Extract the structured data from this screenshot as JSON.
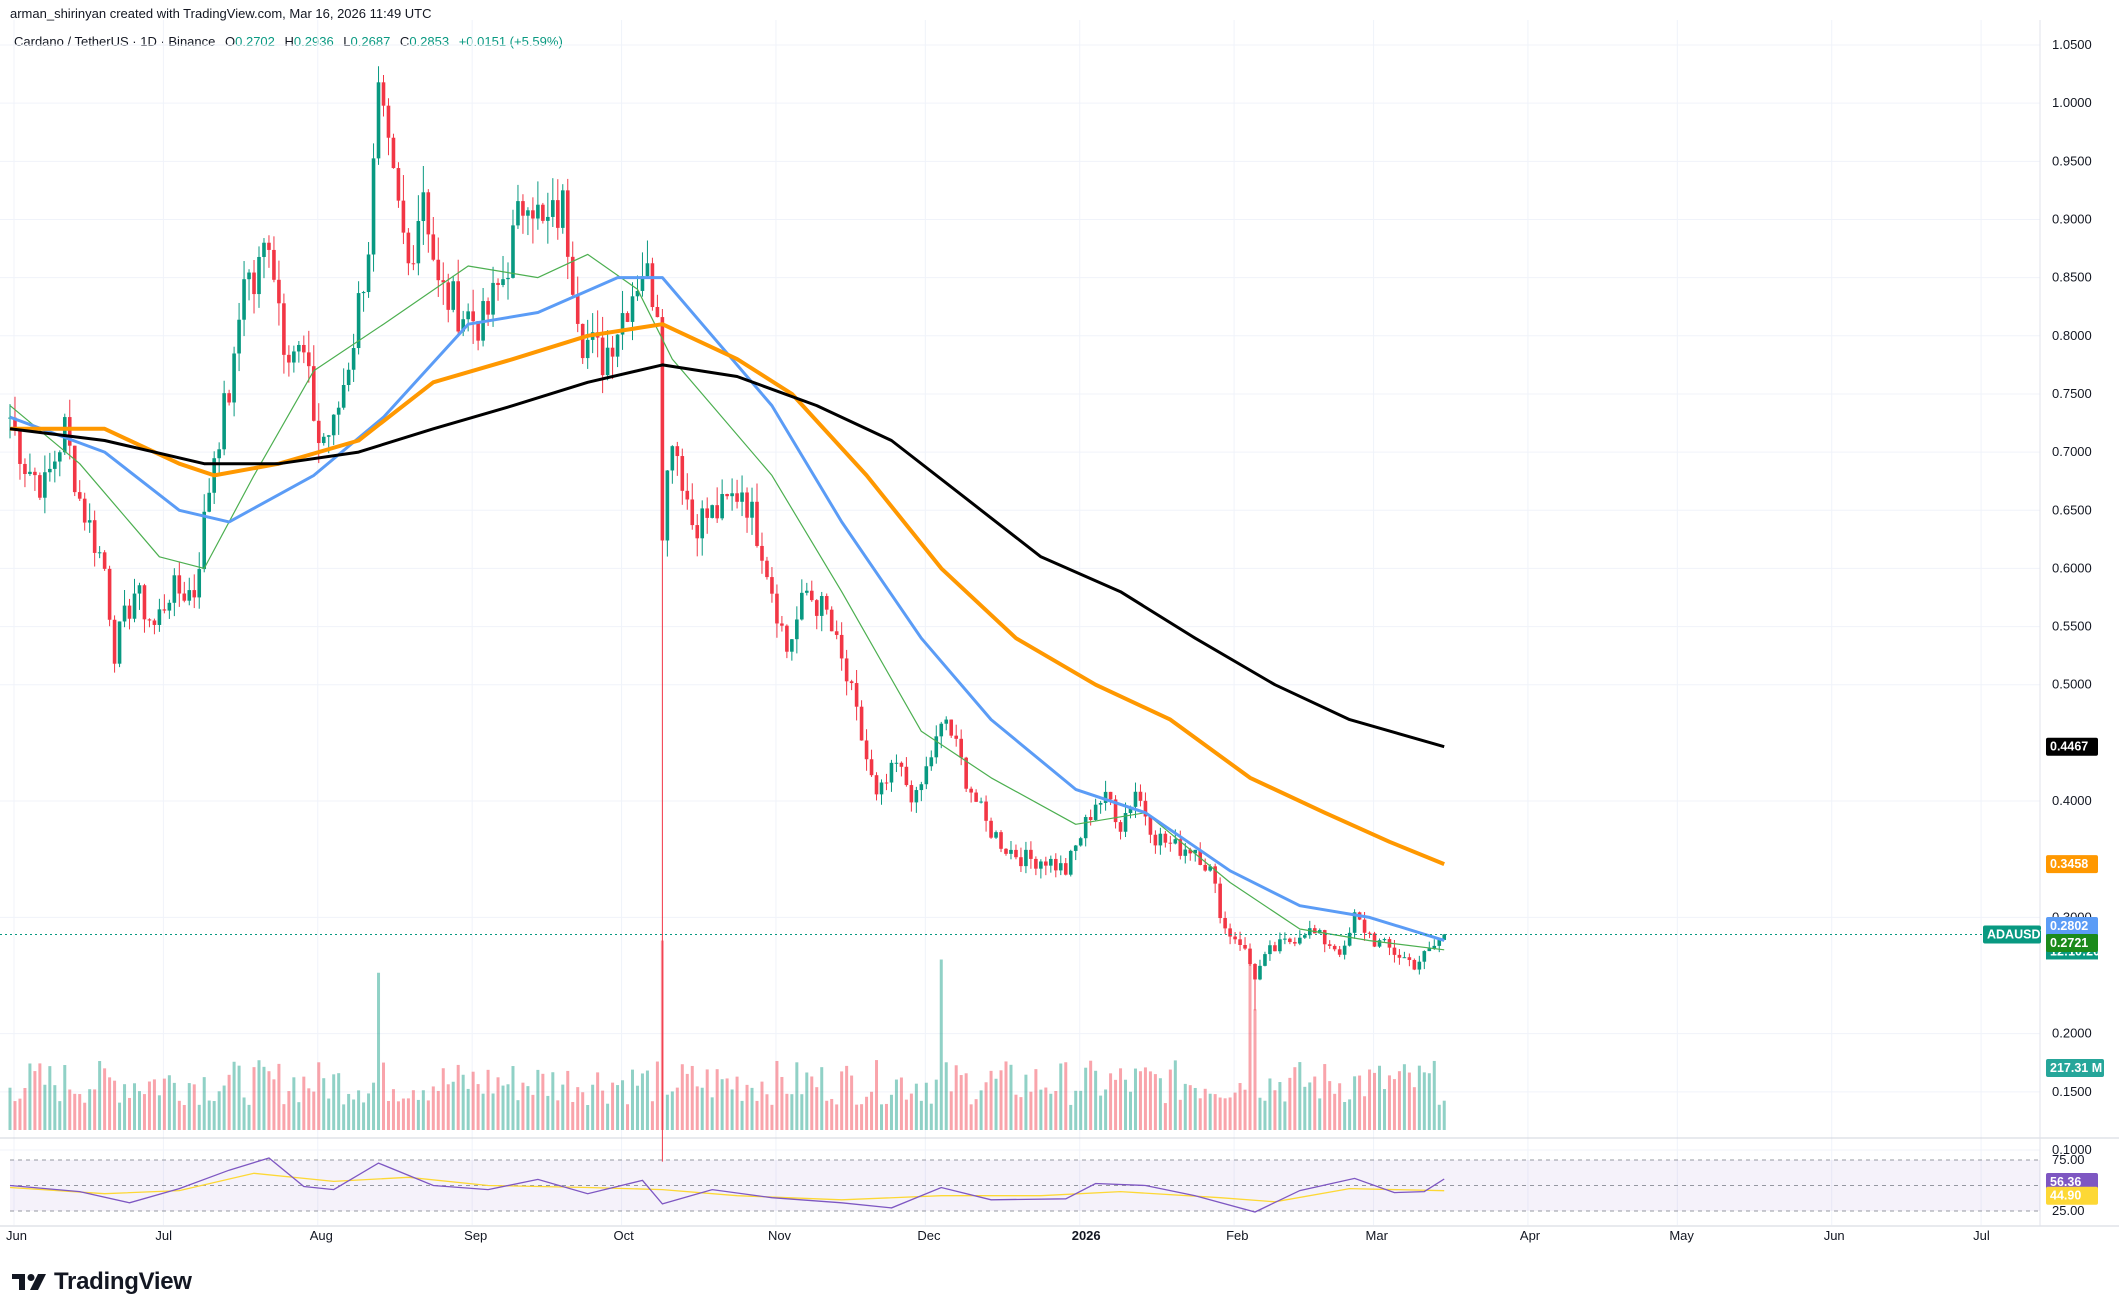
{
  "header": {
    "author_line": "arman_shirinyan created with TradingView.com, Mar 16, 2026 11:49 UTC",
    "symbol": "Cardano / TetherUS · 1D · Binance",
    "ohlc": [
      {
        "k": "O",
        "v": "0.2702"
      },
      {
        "k": "H",
        "v": "0.2936"
      },
      {
        "k": "L",
        "v": "0.2687"
      },
      {
        "k": "C",
        "v": "0.2853"
      }
    ],
    "change": "+0.0151 (+5.59%)"
  },
  "brand": {
    "name": "TradingView"
  },
  "colors": {
    "up": "#089981",
    "down": "#f23645",
    "ma_green": "#4caf50",
    "ma_blue": "#5b9cf6",
    "ma_orange": "#ff9800",
    "ma_black": "#000000",
    "rsi": "#7e57c2",
    "rsi_ma": "#fdd835"
  },
  "chart_data": {
    "type": "candlestick",
    "symbol": "ADAUSDT",
    "y_axis": {
      "ticks": [
        "1.0500",
        "1.0000",
        "0.9500",
        "0.9000",
        "0.8500",
        "0.8000",
        "0.7500",
        "0.7000",
        "0.6500",
        "0.6000",
        "0.5500",
        "0.5000",
        "0.4000",
        "0.3000",
        "0.2000",
        "0.1500",
        "0.1000"
      ],
      "range": [
        0.08,
        1.05
      ]
    },
    "x_axis": {
      "labels": [
        "Jun",
        "Jul",
        "Aug",
        "Sep",
        "Oct",
        "Nov",
        "Dec",
        "2026",
        "Feb",
        "Mar",
        "Apr",
        "May",
        "Jun",
        "Jul"
      ],
      "range": [
        "2025-06-01",
        "2026-07-31"
      ]
    },
    "price_anchors": [
      [
        "2025-06-01",
        0.73
      ],
      [
        "2025-06-04",
        0.69
      ],
      [
        "2025-06-08",
        0.67
      ],
      [
        "2025-06-12",
        0.72
      ],
      [
        "2025-06-15",
        0.66
      ],
      [
        "2025-06-20",
        0.6
      ],
      [
        "2025-06-22",
        0.53
      ],
      [
        "2025-06-26",
        0.58
      ],
      [
        "2025-06-30",
        0.55
      ],
      [
        "2025-07-03",
        0.58
      ],
      [
        "2025-07-08",
        0.58
      ],
      [
        "2025-07-12",
        0.7
      ],
      [
        "2025-07-16",
        0.77
      ],
      [
        "2025-07-18",
        0.86
      ],
      [
        "2025-07-20",
        0.84
      ],
      [
        "2025-07-23",
        0.89
      ],
      [
        "2025-07-26",
        0.8
      ],
      [
        "2025-07-30",
        0.78
      ],
      [
        "2025-08-02",
        0.71
      ],
      [
        "2025-08-05",
        0.72
      ],
      [
        "2025-08-09",
        0.8
      ],
      [
        "2025-08-12",
        0.88
      ],
      [
        "2025-08-14",
        1.0
      ],
      [
        "2025-08-16",
        0.95
      ],
      [
        "2025-08-20",
        0.86
      ],
      [
        "2025-08-23",
        0.93
      ],
      [
        "2025-08-26",
        0.84
      ],
      [
        "2025-08-31",
        0.82
      ],
      [
        "2025-09-04",
        0.81
      ],
      [
        "2025-09-08",
        0.85
      ],
      [
        "2025-09-13",
        0.93
      ],
      [
        "2025-09-16",
        0.89
      ],
      [
        "2025-09-20",
        0.91
      ],
      [
        "2025-09-24",
        0.8
      ],
      [
        "2025-09-28",
        0.78
      ],
      [
        "2025-10-02",
        0.82
      ],
      [
        "2025-10-06",
        0.86
      ],
      [
        "2025-10-09",
        0.83
      ],
      [
        "2025-10-10",
        0.64
      ],
      [
        "2025-10-12",
        0.72
      ],
      [
        "2025-10-16",
        0.64
      ],
      [
        "2025-10-22",
        0.65
      ],
      [
        "2025-10-26",
        0.67
      ],
      [
        "2025-10-30",
        0.62
      ],
      [
        "2025-11-04",
        0.53
      ],
      [
        "2025-11-08",
        0.58
      ],
      [
        "2025-11-12",
        0.56
      ],
      [
        "2025-11-17",
        0.49
      ],
      [
        "2025-11-22",
        0.4
      ],
      [
        "2025-11-26",
        0.43
      ],
      [
        "2025-11-30",
        0.4
      ],
      [
        "2025-12-03",
        0.44
      ],
      [
        "2025-12-06",
        0.47
      ],
      [
        "2025-12-10",
        0.42
      ],
      [
        "2025-12-14",
        0.38
      ],
      [
        "2025-12-18",
        0.36
      ],
      [
        "2025-12-22",
        0.35
      ],
      [
        "2025-12-26",
        0.35
      ],
      [
        "2025-12-30",
        0.34
      ],
      [
        "2026-01-02",
        0.37
      ],
      [
        "2026-01-05",
        0.4
      ],
      [
        "2026-01-08",
        0.4
      ],
      [
        "2026-01-10",
        0.38
      ],
      [
        "2026-01-13",
        0.41
      ],
      [
        "2026-01-17",
        0.37
      ],
      [
        "2026-01-21",
        0.36
      ],
      [
        "2026-01-25",
        0.36
      ],
      [
        "2026-01-28",
        0.34
      ],
      [
        "2026-01-31",
        0.29
      ],
      [
        "2026-02-03",
        0.28
      ],
      [
        "2026-02-06",
        0.25
      ],
      [
        "2026-02-09",
        0.27
      ],
      [
        "2026-02-13",
        0.28
      ],
      [
        "2026-02-16",
        0.29
      ],
      [
        "2026-02-20",
        0.28
      ],
      [
        "2026-02-24",
        0.27
      ],
      [
        "2026-02-26",
        0.3
      ],
      [
        "2026-03-02",
        0.28
      ],
      [
        "2026-03-06",
        0.27
      ],
      [
        "2026-03-10",
        0.26
      ],
      [
        "2026-03-13",
        0.27
      ],
      [
        "2026-03-16",
        0.2853
      ]
    ],
    "spike_wicks": [
      {
        "date": "2025-10-10",
        "low": 0.09
      },
      {
        "date": "2026-02-06",
        "low": 0.22
      }
    ],
    "moving_averages": [
      {
        "id": "ma-green",
        "points": [
          [
            "2025-06-01",
            0.74
          ],
          [
            "2025-06-15",
            0.69
          ],
          [
            "2025-07-01",
            0.61
          ],
          [
            "2025-07-10",
            0.6
          ],
          [
            "2025-07-20",
            0.68
          ],
          [
            "2025-08-01",
            0.77
          ],
          [
            "2025-08-15",
            0.81
          ],
          [
            "2025-09-01",
            0.86
          ],
          [
            "2025-09-15",
            0.85
          ],
          [
            "2025-09-25",
            0.87
          ],
          [
            "2025-10-05",
            0.84
          ],
          [
            "2025-10-12",
            0.78
          ],
          [
            "2025-10-20",
            0.74
          ],
          [
            "2025-11-01",
            0.68
          ],
          [
            "2025-11-15",
            0.58
          ],
          [
            "2025-12-01",
            0.46
          ],
          [
            "2025-12-15",
            0.42
          ],
          [
            "2026-01-01",
            0.38
          ],
          [
            "2026-01-15",
            0.39
          ],
          [
            "2026-02-01",
            0.33
          ],
          [
            "2026-02-15",
            0.29
          ],
          [
            "2026-03-01",
            0.28
          ],
          [
            "2026-03-16",
            0.2721
          ]
        ]
      },
      {
        "id": "ma-blue",
        "points": [
          [
            "2025-06-01",
            0.73
          ],
          [
            "2025-06-20",
            0.7
          ],
          [
            "2025-07-05",
            0.65
          ],
          [
            "2025-07-15",
            0.64
          ],
          [
            "2025-08-01",
            0.68
          ],
          [
            "2025-08-15",
            0.73
          ],
          [
            "2025-09-01",
            0.81
          ],
          [
            "2025-09-15",
            0.82
          ],
          [
            "2025-10-01",
            0.85
          ],
          [
            "2025-10-10",
            0.85
          ],
          [
            "2025-10-20",
            0.8
          ],
          [
            "2025-11-01",
            0.74
          ],
          [
            "2025-11-15",
            0.64
          ],
          [
            "2025-12-01",
            0.54
          ],
          [
            "2025-12-15",
            0.47
          ],
          [
            "2026-01-01",
            0.41
          ],
          [
            "2026-01-15",
            0.39
          ],
          [
            "2026-02-01",
            0.34
          ],
          [
            "2026-02-15",
            0.31
          ],
          [
            "2026-03-01",
            0.3
          ],
          [
            "2026-03-16",
            0.2802
          ]
        ]
      },
      {
        "id": "ma-orange",
        "points": [
          [
            "2025-06-01",
            0.72
          ],
          [
            "2025-06-20",
            0.72
          ],
          [
            "2025-07-05",
            0.69
          ],
          [
            "2025-07-12",
            0.68
          ],
          [
            "2025-07-25",
            0.69
          ],
          [
            "2025-08-10",
            0.71
          ],
          [
            "2025-08-25",
            0.76
          ],
          [
            "2025-09-10",
            0.78
          ],
          [
            "2025-09-25",
            0.8
          ],
          [
            "2025-10-10",
            0.81
          ],
          [
            "2025-10-25",
            0.78
          ],
          [
            "2025-11-05",
            0.75
          ],
          [
            "2025-11-20",
            0.68
          ],
          [
            "2025-12-05",
            0.6
          ],
          [
            "2025-12-20",
            0.54
          ],
          [
            "2026-01-05",
            0.5
          ],
          [
            "2026-01-20",
            0.47
          ],
          [
            "2026-02-05",
            0.42
          ],
          [
            "2026-02-20",
            0.39
          ],
          [
            "2026-03-05",
            0.365
          ],
          [
            "2026-03-16",
            0.3458
          ]
        ]
      },
      {
        "id": "ma-black",
        "points": [
          [
            "2025-06-01",
            0.72
          ],
          [
            "2025-06-20",
            0.71
          ],
          [
            "2025-07-10",
            0.69
          ],
          [
            "2025-07-25",
            0.69
          ],
          [
            "2025-08-10",
            0.7
          ],
          [
            "2025-08-25",
            0.72
          ],
          [
            "2025-09-10",
            0.74
          ],
          [
            "2025-09-25",
            0.76
          ],
          [
            "2025-10-10",
            0.775
          ],
          [
            "2025-10-25",
            0.765
          ],
          [
            "2025-11-10",
            0.74
          ],
          [
            "2025-11-25",
            0.71
          ],
          [
            "2025-12-10",
            0.66
          ],
          [
            "2025-12-25",
            0.61
          ],
          [
            "2026-01-10",
            0.58
          ],
          [
            "2026-01-25",
            0.54
          ],
          [
            "2026-02-10",
            0.5
          ],
          [
            "2026-02-25",
            0.47
          ],
          [
            "2026-03-16",
            0.4467
          ]
        ]
      }
    ],
    "volume": {
      "last_label": "217.31 M",
      "spike_dates": [
        "2025-08-14",
        "2025-10-10",
        "2025-12-05",
        "2026-02-05",
        "2026-02-06"
      ]
    },
    "rsi": {
      "ticks": [
        "75.00",
        "25.00"
      ],
      "value": "56.36",
      "ma_value": "44.90",
      "points": [
        [
          "2025-06-01",
          50
        ],
        [
          "2025-06-15",
          44
        ],
        [
          "2025-06-25",
          33
        ],
        [
          "2025-07-05",
          47
        ],
        [
          "2025-07-15",
          65
        ],
        [
          "2025-07-23",
          77
        ],
        [
          "2025-07-30",
          49
        ],
        [
          "2025-08-05",
          46
        ],
        [
          "2025-08-14",
          72
        ],
        [
          "2025-08-25",
          50
        ],
        [
          "2025-09-05",
          46
        ],
        [
          "2025-09-15",
          56
        ],
        [
          "2025-09-25",
          42
        ],
        [
          "2025-10-06",
          55
        ],
        [
          "2025-10-10",
          32
        ],
        [
          "2025-10-20",
          46
        ],
        [
          "2025-11-01",
          38
        ],
        [
          "2025-11-15",
          33
        ],
        [
          "2025-11-25",
          28
        ],
        [
          "2025-12-05",
          48
        ],
        [
          "2025-12-15",
          36
        ],
        [
          "2025-12-30",
          37
        ],
        [
          "2026-01-05",
          52
        ],
        [
          "2026-01-15",
          50
        ],
        [
          "2026-01-25",
          40
        ],
        [
          "2026-02-06",
          24
        ],
        [
          "2026-02-15",
          45
        ],
        [
          "2026-02-26",
          57
        ],
        [
          "2026-03-06",
          43
        ],
        [
          "2026-03-12",
          44
        ],
        [
          "2026-03-16",
          56.36
        ]
      ],
      "ma_points": [
        [
          "2025-06-01",
          48
        ],
        [
          "2025-06-20",
          42
        ],
        [
          "2025-07-05",
          45
        ],
        [
          "2025-07-20",
          62
        ],
        [
          "2025-08-05",
          54
        ],
        [
          "2025-08-20",
          58
        ],
        [
          "2025-09-05",
          50
        ],
        [
          "2025-09-25",
          48
        ],
        [
          "2025-10-10",
          46
        ],
        [
          "2025-10-25",
          40
        ],
        [
          "2025-11-15",
          36
        ],
        [
          "2025-12-05",
          40
        ],
        [
          "2025-12-25",
          40
        ],
        [
          "2026-01-10",
          44
        ],
        [
          "2026-01-30",
          38
        ],
        [
          "2026-02-10",
          34
        ],
        [
          "2026-02-25",
          47
        ],
        [
          "2026-03-16",
          44.9
        ]
      ]
    },
    "price_badges": [
      {
        "label": "ADAUSDT",
        "value": "0.2853",
        "sub": "12:10:20",
        "price": 0.2853,
        "color": "#089981"
      },
      {
        "value": "0.2802",
        "price": 0.2802,
        "color": "#5b9cf6"
      },
      {
        "value": "0.2721",
        "price": 0.2721,
        "color": "#1b8a1b"
      },
      {
        "value": "0.4467",
        "price": 0.4467,
        "color": "#000000"
      },
      {
        "value": "0.3458",
        "price": 0.3458,
        "color": "#ff9800"
      }
    ],
    "grid": true
  }
}
